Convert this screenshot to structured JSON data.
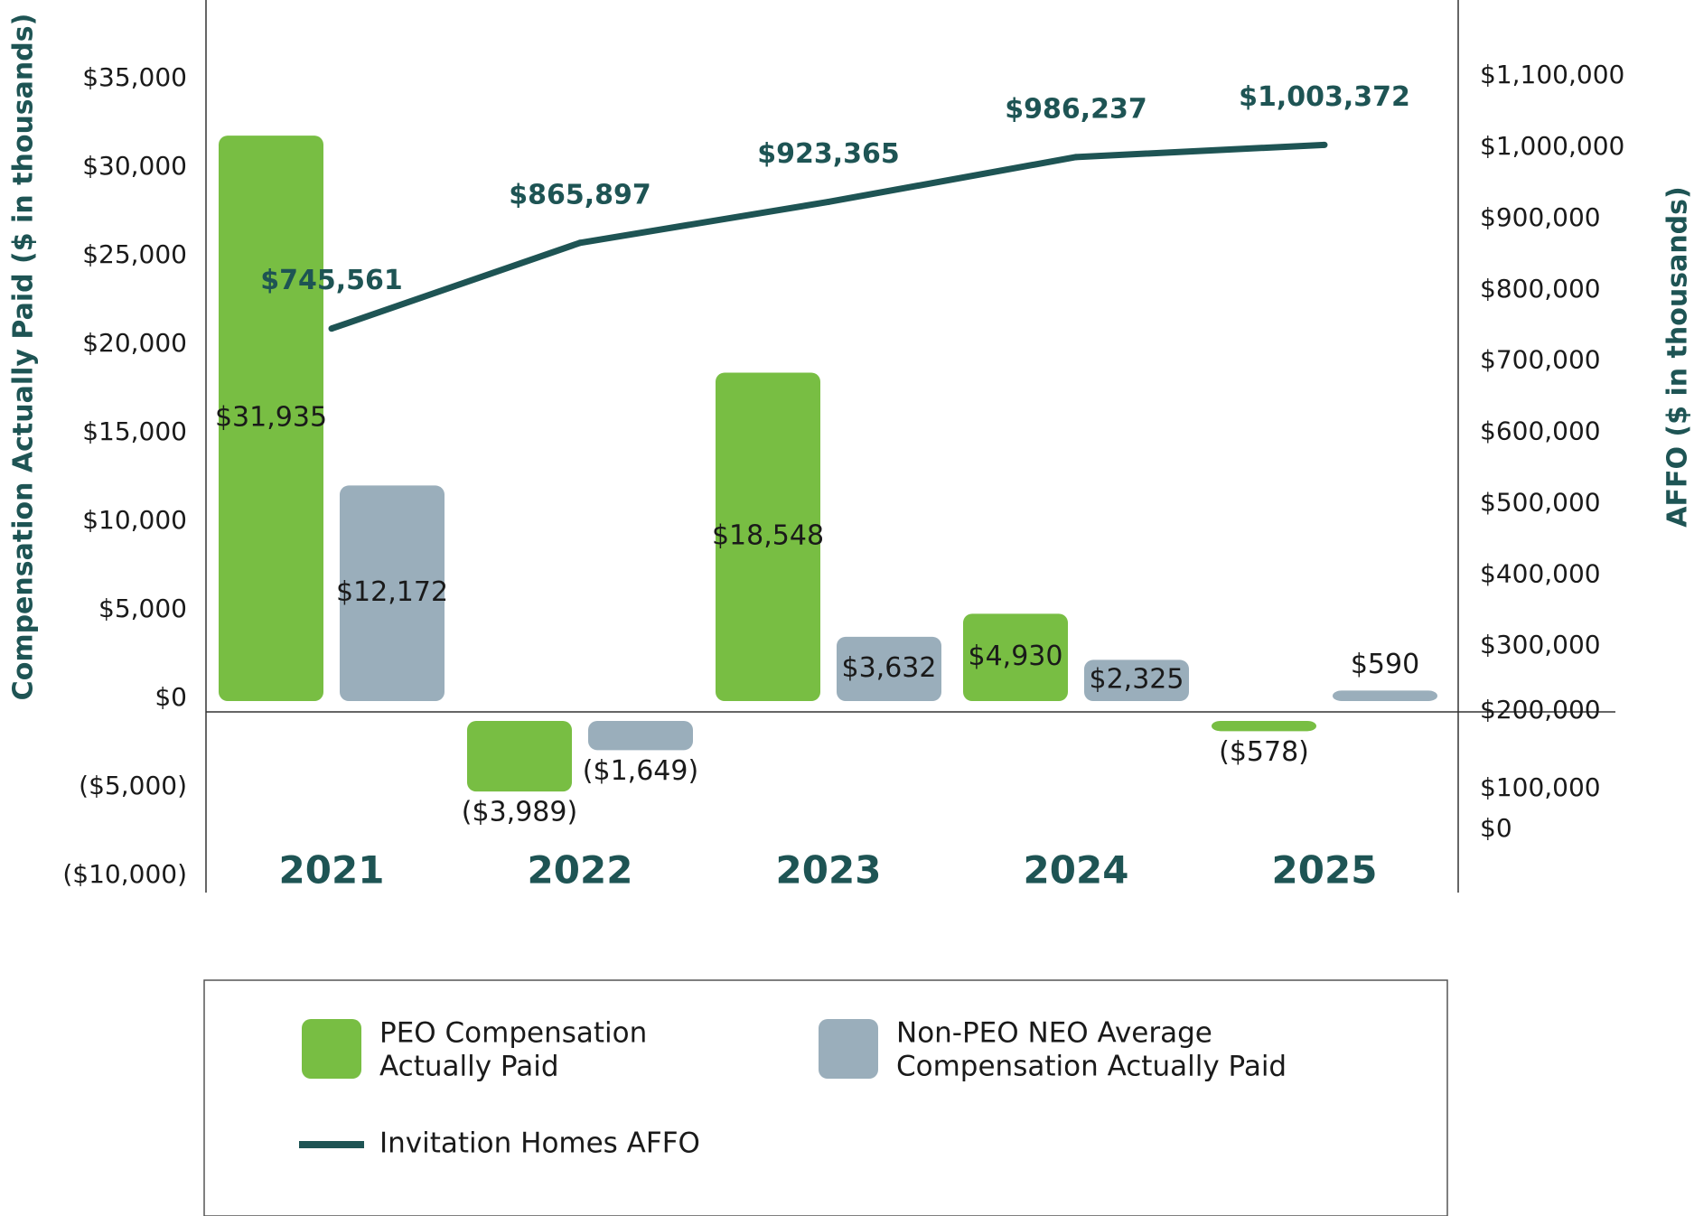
{
  "chart_data": {
    "type": "bar",
    "categories": [
      "2021",
      "2022",
      "2023",
      "2024",
      "2025"
    ],
    "series": [
      {
        "name": "PEO Compensation Actually Paid",
        "kind": "bar",
        "axis": "left",
        "color": "#78be43",
        "values": [
          31935,
          -3989,
          18548,
          4930,
          -578
        ],
        "labels": [
          "$31,935",
          "($3,989)",
          "$18,548",
          "$4,930",
          "($578)"
        ]
      },
      {
        "name": "Non-PEO NEO Average Compensation Actually Paid",
        "kind": "bar",
        "axis": "left",
        "color": "#9aaebb",
        "values": [
          12172,
          -1649,
          3632,
          2325,
          590
        ],
        "labels": [
          "$12,172",
          "($1,649)",
          "$3,632",
          "$2,325",
          "$590"
        ]
      },
      {
        "name": "Invitation Homes AFFO",
        "kind": "line",
        "axis": "right",
        "color": "#1e5454",
        "values": [
          745561,
          865897,
          923365,
          986237,
          1003372
        ],
        "labels": [
          "$745,561",
          "$865,897",
          "$923,365",
          "$986,237",
          "$1,003,372"
        ]
      }
    ],
    "left_axis": {
      "title": "Compensation Actually Paid ($ in thousands)",
      "ticks": [
        {
          "value": 35000,
          "label": "$35,000"
        },
        {
          "value": 30000,
          "label": "$30,000"
        },
        {
          "value": 25000,
          "label": "$25,000"
        },
        {
          "value": 20000,
          "label": "$20,000"
        },
        {
          "value": 15000,
          "label": "$15,000"
        },
        {
          "value": 10000,
          "label": "$10,000"
        },
        {
          "value": 5000,
          "label": "$5,000"
        },
        {
          "value": 0,
          "label": "$0"
        },
        {
          "value": -5000,
          "label": "($5,000)"
        },
        {
          "value": -10000,
          "label": "($10,000)"
        }
      ]
    },
    "right_axis": {
      "title": "AFFO ($ in thousands)",
      "ticks": [
        {
          "value": 1100000,
          "label": "$1,100,000"
        },
        {
          "value": 1000000,
          "label": "$1,000,000"
        },
        {
          "value": 900000,
          "label": "$900,000"
        },
        {
          "value": 800000,
          "label": "$800,000"
        },
        {
          "value": 700000,
          "label": "$700,000"
        },
        {
          "value": 600000,
          "label": "$600,000"
        },
        {
          "value": 500000,
          "label": "$500,000"
        },
        {
          "value": 400000,
          "label": "$400,000"
        },
        {
          "value": 300000,
          "label": "$300,000"
        },
        {
          "value": 200000,
          "label": "$200,000"
        },
        {
          "value": 100000,
          "label": "$100,000"
        },
        {
          "value": 0,
          "label": "$0"
        }
      ]
    },
    "legend": {
      "placement": "bottom",
      "entries": [
        {
          "lines": [
            "PEO Compensation",
            "Actually Paid"
          ],
          "color": "#78be43",
          "marker": "square"
        },
        {
          "lines": [
            "Non-PEO NEO Average",
            "Compensation Actually Paid"
          ],
          "color": "#9aaebb",
          "marker": "square"
        },
        {
          "lines": [
            "Invitation Homes AFFO"
          ],
          "color": "#1e5454",
          "marker": "line"
        }
      ]
    }
  }
}
